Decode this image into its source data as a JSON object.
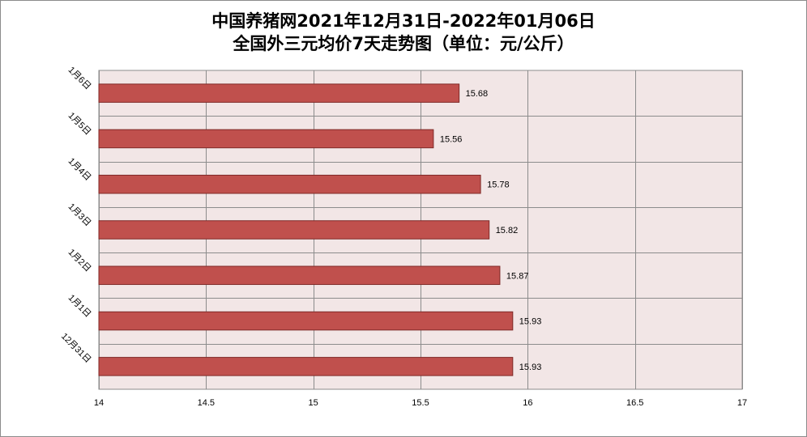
{
  "chart_data": {
    "type": "bar",
    "orientation": "horizontal",
    "title_lines": [
      "中国养猪网2021年12月31日-2022年01月06日",
      "全国外三元均价7天走势图（单位：元/公斤）"
    ],
    "categories": [
      "1月6日",
      "1月5日",
      "1月4日",
      "1月3日",
      "1月2日",
      "1月1日",
      "12月31日"
    ],
    "values": [
      15.68,
      15.56,
      15.78,
      15.82,
      15.87,
      15.93,
      15.93
    ],
    "data_labels": [
      "15.68",
      "15.56",
      "15.78",
      "15.82",
      "15.87",
      "15.93",
      "15.93"
    ],
    "x_ticks": [
      14,
      14.5,
      15,
      15.5,
      16,
      16.5,
      17
    ],
    "x_tick_labels": [
      "14",
      "14.5",
      "15",
      "15.5",
      "16",
      "16.5",
      "17"
    ],
    "xlim": [
      14,
      17
    ],
    "grid": true,
    "legend": "none",
    "colors": {
      "bar_fill": "#c0504d",
      "bar_stroke": "#7f2a28",
      "plot_background": "#f2e6e6",
      "grid_line": "#8c8c8c"
    }
  }
}
